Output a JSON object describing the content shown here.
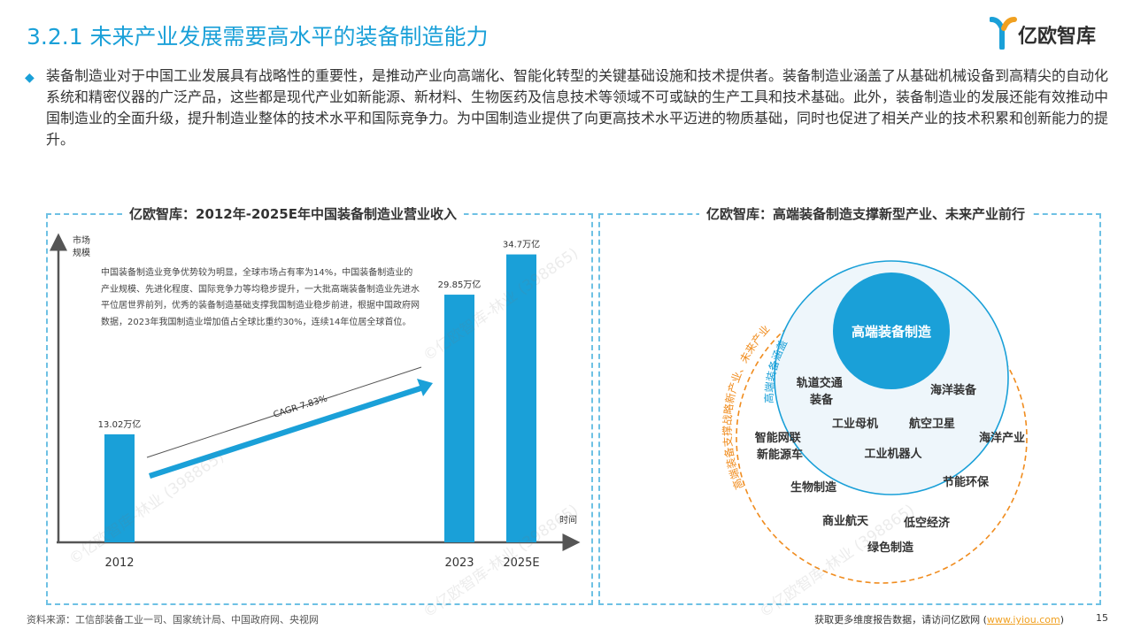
{
  "header": {
    "title": "3.2.1 未来产业发展需要高水平的装备制造能力",
    "logo_text": "亿欧智库"
  },
  "intro": {
    "text": "装备制造业对于中国工业发展具有战略性的重要性，是推动产业向高端化、智能化转型的关键基础设施和技术提供者。装备制造业涵盖了从基础机械设备到高精尖的自动化系统和精密仪器的广泛产品，这些都是现代产业如新能源、新材料、生物医药及信息技术等领域不可或缺的生产工具和技术基础。此外，装备制造业的发展还能有效推动中国制造业的全面升级，提升制造业整体的技术水平和国际竞争力。为中国制造业提供了向更高技术水平迈进的物质基础，同时也促进了相关产业的技术积累和创新能力的提升。"
  },
  "left_panel": {
    "title": "亿欧智库：2012年-2025E年中国装备制造业营业收入",
    "description": "中国装备制造业竞争优势较为明显，全球市场占有率为14%，中国装备制造业的产业规模、先进化程度、国际竞争力等均稳步提升，一大批高端装备制造业先进水平位居世界前列，优秀的装备制造基础支撑我国制造业稳步前进，根据中国政府网数据，2023年我国制造业增加值占全球比重约30%，连续14年位居全球首位。"
  },
  "chart_data": {
    "type": "bar",
    "categories": [
      "2012",
      "2023",
      "2025E"
    ],
    "values": [
      13.02,
      29.85,
      34.7
    ],
    "value_labels": [
      "13.02万亿",
      "29.85万亿",
      "34.7万亿"
    ],
    "ylabel": "市场规模",
    "xlabel": "时间",
    "annotation": "CAGR 7.83%",
    "bar_color": "#1aa0d8",
    "ylim": [
      0,
      37
    ]
  },
  "right_panel": {
    "title": "亿欧智库：高端装备制造支撑新型产业、未来产业前行",
    "core_label": "高端装备制造",
    "inner_arc_label": "高端装备涵盖",
    "outer_arc_label": "高端装备支撑战略新产业、未来产业",
    "inner_items": [
      "轨道交通装备",
      "海洋装备",
      "工业母机",
      "航空卫星",
      "工业机器人"
    ],
    "outer_items": [
      "智能网联新能源车",
      "海洋产业",
      "生物制造",
      "节能环保",
      "商业航天",
      "低空经济",
      "绿色制造"
    ],
    "colors": {
      "core": "#1aa0d8",
      "inner_ring": "#1aa0d8",
      "outer_ring": "#f08c1e"
    }
  },
  "footer": {
    "source": "资料来源：工信部装备工业一司、国家统计局、中国政府网、央视网",
    "link_prefix": "获取更多维度报告数据，请访问亿欧网 (",
    "link_text": "www.iyiou.com",
    "link_suffix": ")",
    "page_number": "15"
  },
  "watermarks": [
    "©亿欧智库-林业 (398865)"
  ]
}
